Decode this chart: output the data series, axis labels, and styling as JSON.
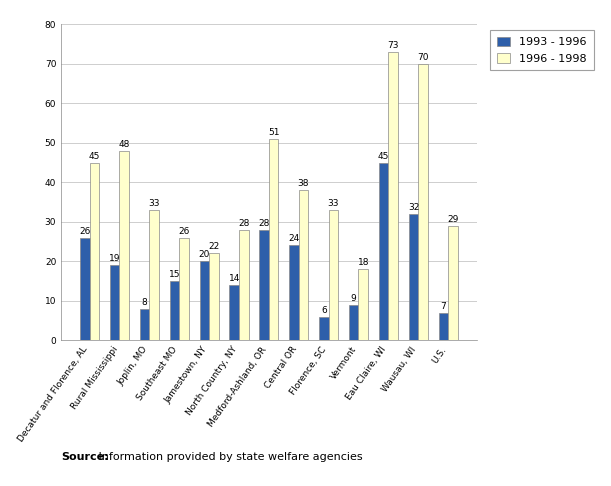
{
  "categories": [
    "Decatur and Florence, AL",
    "Rural Mississippi",
    "Joplin, MO",
    "Southeast MO",
    "Jamestown, NY",
    "North Country, NY",
    "Medford-Ashland, OR",
    "Central OR",
    "Florence, SC",
    "Vermont",
    "Eau Claire, WI",
    "Wausau, WI",
    "U.S."
  ],
  "series_1993_1996": [
    26,
    19,
    8,
    15,
    20,
    14,
    28,
    24,
    6,
    9,
    45,
    32,
    7
  ],
  "series_1996_1998": [
    45,
    48,
    33,
    26,
    22,
    28,
    51,
    38,
    33,
    18,
    73,
    70,
    29
  ],
  "bar_color_1993": "#2E5FAA",
  "bar_color_1996": "#FFFFCC",
  "legend_labels": [
    "1993 - 1996",
    "1996 - 1998"
  ],
  "ylim": [
    0,
    80
  ],
  "yticks": [
    0,
    10,
    20,
    30,
    40,
    50,
    60,
    70,
    80
  ],
  "source_bold": "Source:",
  "source_rest": " Information provided by state welfare agencies",
  "background_color": "#FFFFFF",
  "grid_color": "#BBBBBB",
  "bar_edge_color": "#888888",
  "bar_width": 0.32,
  "label_fontsize": 6.5,
  "value_fontsize": 6.5,
  "legend_fontsize": 8,
  "source_fontsize": 8
}
